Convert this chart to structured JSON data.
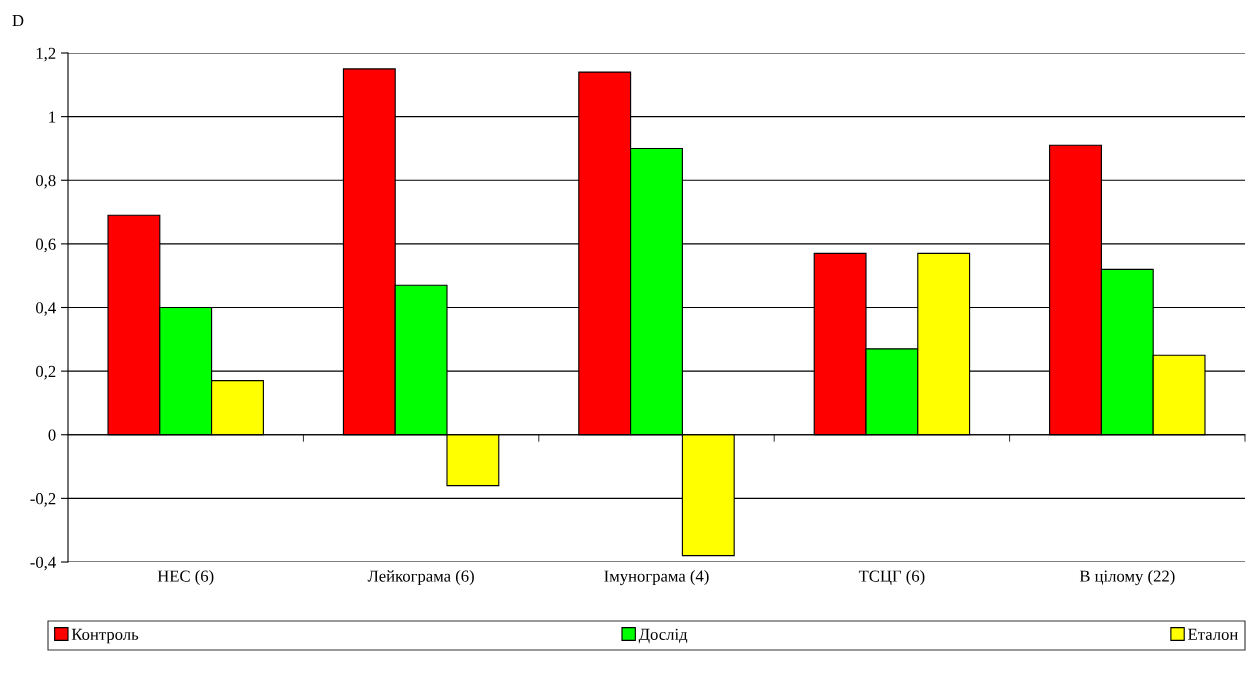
{
  "chart_data": {
    "type": "bar",
    "ylabel": "D",
    "categories": [
      "НЕС (6)",
      "Лейкограма (6)",
      "Імунограма (4)",
      "ТСЦГ (6)",
      "В цілому (22)"
    ],
    "series": [
      {
        "name": "Контроль",
        "color": "#ff0000",
        "values": [
          0.69,
          1.15,
          1.14,
          0.57,
          0.91
        ]
      },
      {
        "name": "Дослід",
        "color": "#00ff00",
        "values": [
          0.4,
          0.47,
          0.9,
          0.27,
          0.52
        ]
      },
      {
        "name": "Еталон",
        "color": "#ffff00",
        "values": [
          0.17,
          -0.16,
          -0.38,
          0.57,
          0.25
        ]
      }
    ],
    "ylim": [
      -0.4,
      1.2
    ],
    "yticks": [
      {
        "value": -0.4,
        "label": "-0,4"
      },
      {
        "value": -0.2,
        "label": "-0,2"
      },
      0,
      {
        "value": 0.2,
        "label": "0,2"
      },
      {
        "value": 0.4,
        "label": "0,4"
      },
      {
        "value": 0.6,
        "label": "0,6"
      },
      {
        "value": 0.8,
        "label": "0,8"
      },
      1,
      {
        "value": 1.2,
        "label": "1,2"
      }
    ],
    "grid": "y",
    "legend": "bottom"
  }
}
